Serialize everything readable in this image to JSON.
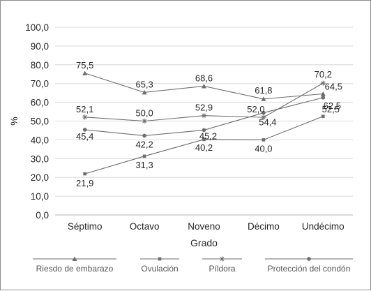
{
  "chart_data": {
    "type": "line",
    "xlabel": "Grado",
    "ylabel": "%",
    "ylim": [
      0,
      100
    ],
    "yticks": [
      "0,0",
      "10,0",
      "20,0",
      "30,0",
      "40,0",
      "50,0",
      "60,0",
      "70,0",
      "80,0",
      "90,0",
      "100,0"
    ],
    "categories": [
      "Séptimo",
      "Octavo",
      "Noveno",
      "Décimo",
      "Undécimo"
    ],
    "grid": true,
    "legend_position": "bottom",
    "series": [
      {
        "name": "Riesdo de embarazo",
        "marker": "triangle",
        "color": "#6d6d6d",
        "values": [
          75.5,
          65.3,
          68.6,
          61.8,
          64.5
        ],
        "labels": [
          "75,5",
          "65,3",
          "68,6",
          "61,8",
          "64,5"
        ]
      },
      {
        "name": "Ovulación",
        "marker": "square",
        "color": "#6d6d6d",
        "values": [
          21.9,
          31.3,
          40.2,
          40.0,
          52.5
        ],
        "labels": [
          "21,9",
          "31,3",
          "40,2",
          "40,0",
          "52,5"
        ]
      },
      {
        "name": "Píldora",
        "marker": "star",
        "color": "#6d6d6d",
        "values": [
          52.1,
          50.0,
          52.9,
          52.0,
          70.2
        ],
        "labels": [
          "52,1",
          "50,0",
          "52,9",
          "52,0",
          "70,2"
        ]
      },
      {
        "name": "Protección del condón",
        "marker": "circle",
        "color": "#6d6d6d",
        "values": [
          45.4,
          42.2,
          45.2,
          54.4,
          62.5
        ],
        "labels": [
          "45,4",
          "42,2",
          "45,2",
          "54,4",
          "62,5"
        ]
      }
    ]
  }
}
